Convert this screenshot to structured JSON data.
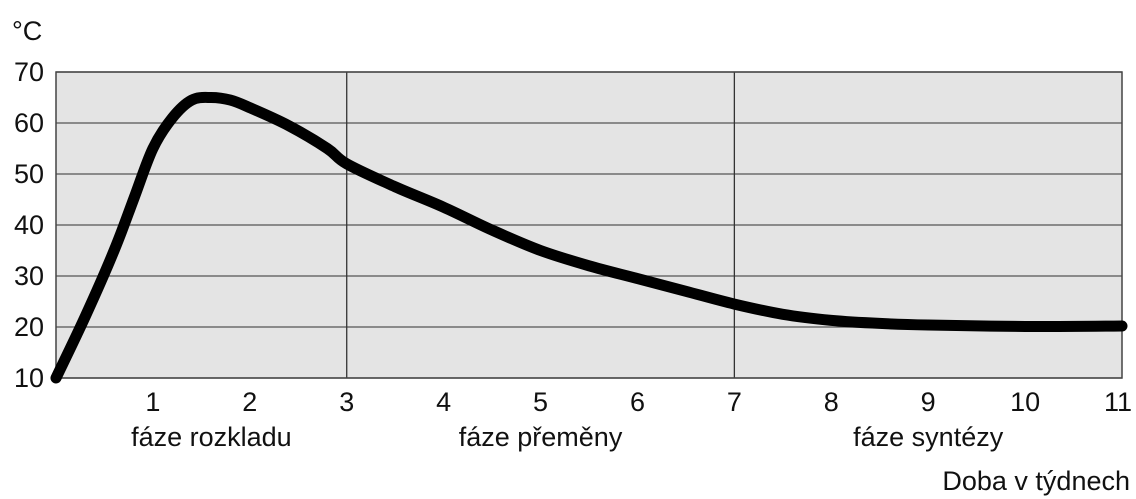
{
  "chart_data": {
    "type": "line",
    "ylabel": "°C",
    "xlabel": "Doba v týdnech",
    "xlim": [
      0,
      11
    ],
    "ylim": [
      10,
      70
    ],
    "x_ticks": [
      1,
      2,
      3,
      4,
      5,
      6,
      7,
      8,
      9,
      10,
      11
    ],
    "y_ticks": [
      10,
      20,
      30,
      40,
      50,
      60,
      70
    ],
    "grid": "horizontal",
    "phase_boundaries": [
      3,
      7
    ],
    "phases": [
      {
        "label": "fáze rozkladu",
        "from": 0,
        "to": 3
      },
      {
        "label": "fáze přeměny",
        "from": 3,
        "to": 7
      },
      {
        "label": "fáze syntézy",
        "from": 7,
        "to": 11
      }
    ],
    "colors": {
      "plot_background": "#e4e4e4",
      "line": "#000000",
      "grid": "#555555"
    },
    "series": [
      {
        "points": [
          [
            0,
            10
          ],
          [
            0.3,
            22
          ],
          [
            0.6,
            35
          ],
          [
            0.8,
            45
          ],
          [
            1.0,
            55
          ],
          [
            1.2,
            61
          ],
          [
            1.4,
            64.5
          ],
          [
            1.6,
            65
          ],
          [
            1.8,
            64.5
          ],
          [
            2.0,
            63
          ],
          [
            2.4,
            59.5
          ],
          [
            2.8,
            55
          ],
          [
            3.0,
            52
          ],
          [
            3.5,
            47.5
          ],
          [
            4.0,
            43.5
          ],
          [
            4.5,
            39
          ],
          [
            5.0,
            35
          ],
          [
            5.5,
            32
          ],
          [
            6.0,
            29.5
          ],
          [
            6.5,
            27
          ],
          [
            7.0,
            24.5
          ],
          [
            7.5,
            22.5
          ],
          [
            8.0,
            21.3
          ],
          [
            8.5,
            20.7
          ],
          [
            9.0,
            20.4
          ],
          [
            10.0,
            20.1
          ],
          [
            11.0,
            20.2
          ]
        ]
      }
    ]
  }
}
